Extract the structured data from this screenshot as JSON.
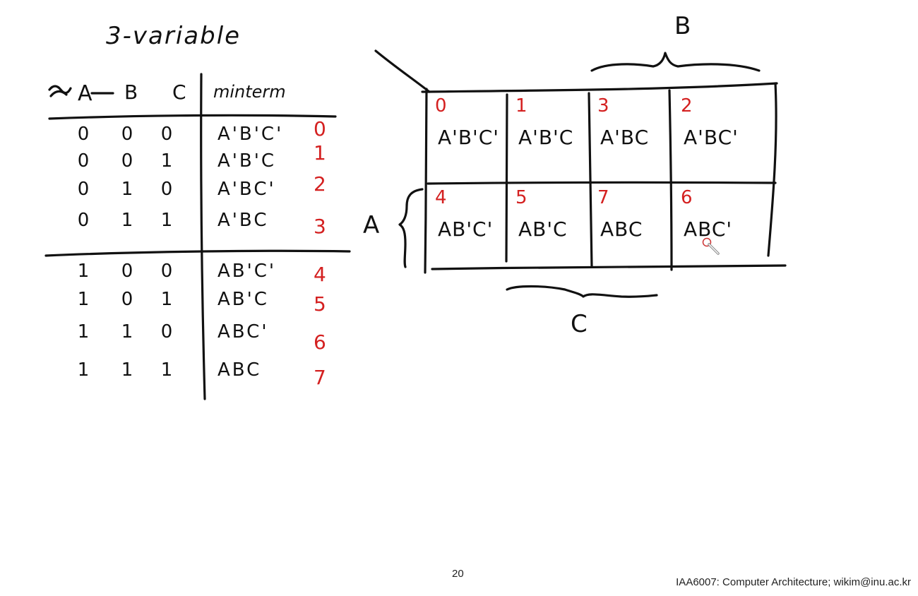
{
  "slide": {
    "title": "3-variable",
    "page_number": "20",
    "footer": "IAA6007: Computer Architecture; wikim@inu.ac.kr"
  },
  "truth_table": {
    "headers": [
      "A",
      "B",
      "C",
      "minterm"
    ],
    "rows": [
      {
        "a": "0",
        "b": "0",
        "c": "0",
        "term": "A'B'C'",
        "index": "0"
      },
      {
        "a": "0",
        "b": "0",
        "c": "1",
        "term": "A'B'C",
        "index": "1"
      },
      {
        "a": "0",
        "b": "1",
        "c": "0",
        "term": "A'BC'",
        "index": "2"
      },
      {
        "a": "0",
        "b": "1",
        "c": "1",
        "term": "A'BC",
        "index": "3"
      },
      {
        "a": "1",
        "b": "0",
        "c": "0",
        "term": "AB'C'",
        "index": "4"
      },
      {
        "a": "1",
        "b": "0",
        "c": "1",
        "term": "AB'C",
        "index": "5"
      },
      {
        "a": "1",
        "b": "1",
        "c": "0",
        "term": "ABC'",
        "index": "6"
      },
      {
        "a": "1",
        "b": "1",
        "c": "1",
        "term": "ABC",
        "index": "7"
      }
    ]
  },
  "kmap": {
    "label_b": "B",
    "label_a": "A",
    "label_c": "C",
    "cells": [
      {
        "index": "0",
        "term": "A'B'C'"
      },
      {
        "index": "1",
        "term": "A'B'C"
      },
      {
        "index": "3",
        "term": "A'BC"
      },
      {
        "index": "2",
        "term": "A'BC'"
      },
      {
        "index": "4",
        "term": "AB'C'"
      },
      {
        "index": "5",
        "term": "AB'C"
      },
      {
        "index": "7",
        "term": "ABC"
      },
      {
        "index": "6",
        "term": "ABC'"
      }
    ]
  }
}
